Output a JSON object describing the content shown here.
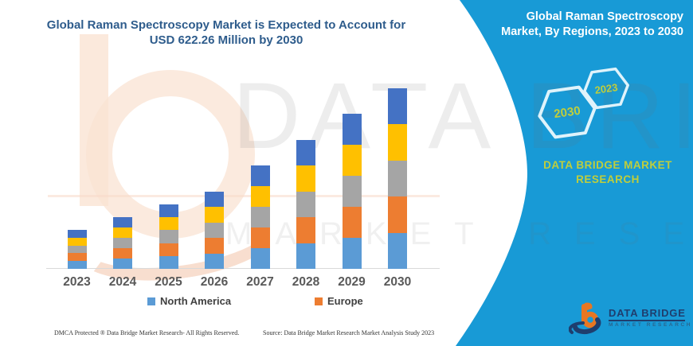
{
  "header": {
    "chart_title": "Global Raman Spectroscopy Market is Expected to Account for USD 622.26 Million by 2030"
  },
  "panel": {
    "title": "Global Raman Spectroscopy Market, By Regions, 2023 to 2030",
    "hexagons": [
      {
        "label": "2030"
      },
      {
        "label": "2023"
      }
    ],
    "brand_text": "DATA BRIDGE MARKET RESEARCH",
    "logo": {
      "name": "DATA BRIDGE",
      "tagline": "MARKET RESEARCH"
    }
  },
  "chart_data": {
    "type": "bar",
    "stacked": true,
    "title": "Global Raman Spectroscopy Market is Expected to Account for USD 622.26 Million by 2030",
    "unit": "USD Million",
    "categories": [
      "2023",
      "2024",
      "2025",
      "2026",
      "2027",
      "2028",
      "2029",
      "2030"
    ],
    "series": [
      {
        "name": "North America",
        "color": "#5B9BD5",
        "values": [
          26.9,
          35.6,
          44.4,
          53.2,
          71.3,
          88.8,
          106.9,
          124.45
        ]
      },
      {
        "name": "Europe",
        "color": "#ED7D31",
        "values": [
          26.9,
          35.6,
          44.4,
          53.2,
          71.3,
          88.8,
          106.9,
          124.45
        ]
      },
      {
        "name": "",
        "color": "#A5A5A5",
        "values": [
          26.9,
          35.6,
          44.4,
          53.2,
          71.3,
          88.8,
          106.9,
          124.45
        ]
      },
      {
        "name": "",
        "color": "#FFC000",
        "values": [
          26.9,
          35.6,
          44.4,
          53.2,
          71.3,
          88.8,
          106.9,
          124.45
        ]
      },
      {
        "name": "",
        "color": "#4472C4",
        "values": [
          26.9,
          35.6,
          44.4,
          53.2,
          71.3,
          88.8,
          106.9,
          124.45
        ]
      }
    ],
    "totals_estimated": [
      134.5,
      178.0,
      222.0,
      266.0,
      356.5,
      444.0,
      534.5,
      622.26
    ],
    "legend": [
      "North America",
      "Europe"
    ],
    "legend_position": "bottom",
    "grid": false,
    "y_axis_visible": false,
    "ylim": [
      0,
      650
    ]
  },
  "watermark": {
    "line1": "DATA BRIDGE",
    "line2": "MARKET RESEARCH"
  },
  "footer": {
    "left": "DMCA Protected ® Data Bridge Market Research-  All Rights Reserved.",
    "right": "Source: Data Bridge Market Research  Market Analysis Study 2023"
  },
  "colors": {
    "panel_background": "#189AD6",
    "accent_green": "#BFCE3C",
    "title_blue": "#2E5C8C",
    "axis_gray": "#D9D9D9",
    "label_gray": "#595959"
  }
}
